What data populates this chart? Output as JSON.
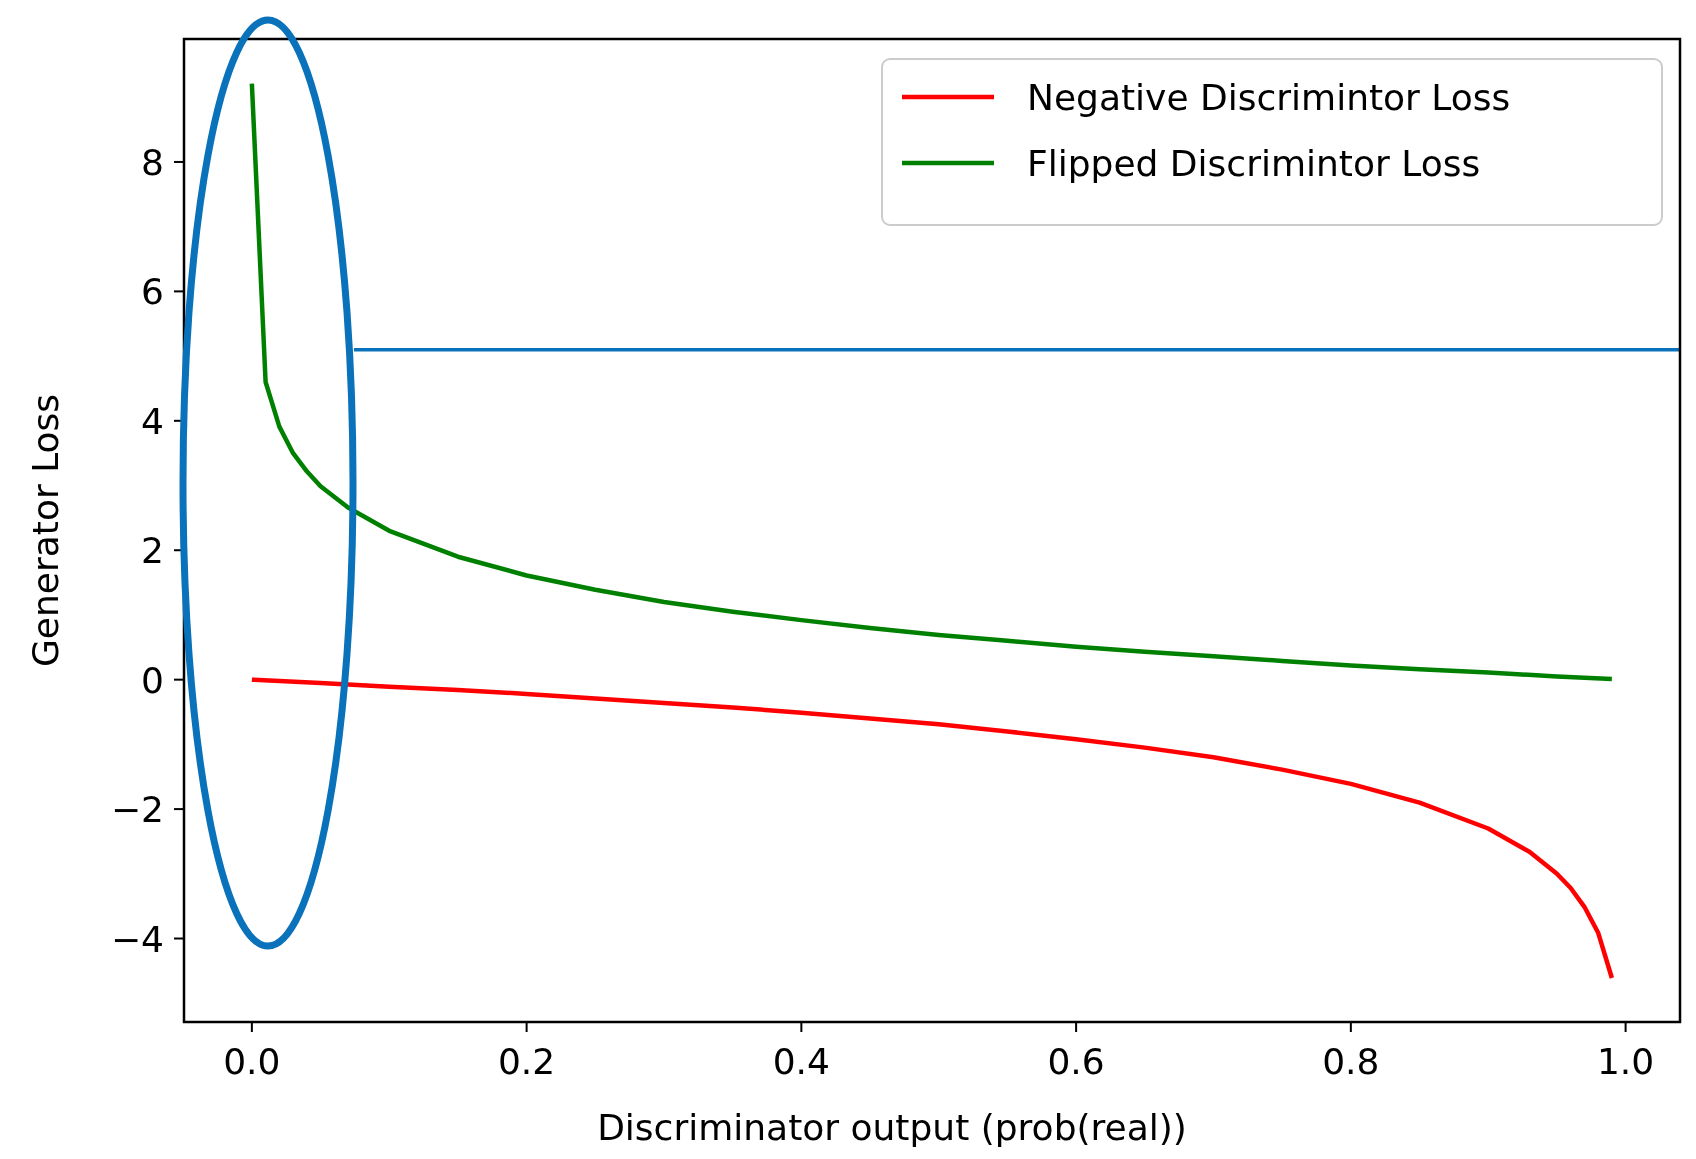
{
  "chart_data": {
    "type": "line",
    "xlabel": "Discriminator output (prob(real))",
    "ylabel": "Generator Loss",
    "xlim": [
      -0.0494,
      1.0396
    ],
    "xticks": [
      {
        "value": 0,
        "label": "0.0"
      },
      {
        "value": 0.2,
        "label": "0.2"
      },
      {
        "value": 0.4,
        "label": "0.4"
      },
      {
        "value": 0.6,
        "label": "0.6"
      },
      {
        "value": 0.8,
        "label": "0.8"
      },
      {
        "value": 1,
        "label": "1.0"
      }
    ],
    "ylim": [
      -5.29,
      9.9
    ],
    "yticks": [
      {
        "value": -4,
        "label": "−4"
      },
      {
        "value": -2,
        "label": "−2"
      },
      0,
      2,
      4,
      6,
      8
    ],
    "legend": "top right",
    "grid": false,
    "ref_lines": [
      {
        "axis": "y",
        "value": 5.1,
        "color": "#0a72ba"
      }
    ],
    "series": [
      {
        "name": "Negative Discrimintor Loss",
        "color": "#ff0000",
        "x": [
          0,
          0.05,
          0.1,
          0.15,
          0.2,
          0.25,
          0.3,
          0.35,
          0.4,
          0.45,
          0.5,
          0.55,
          0.6,
          0.65,
          0.7,
          0.75,
          0.8,
          0.85,
          0.9,
          0.93,
          0.95,
          0.96,
          0.97,
          0.98,
          0.99
        ],
        "values": [
          0,
          -0.05,
          -0.11,
          -0.16,
          -0.22,
          -0.29,
          -0.36,
          -0.43,
          -0.51,
          -0.6,
          -0.69,
          -0.8,
          -0.92,
          -1.05,
          -1.2,
          -1.39,
          -1.61,
          -1.9,
          -2.3,
          -2.66,
          -3,
          -3.22,
          -3.51,
          -3.91,
          -4.61
        ]
      },
      {
        "name": "Flipped Discrimintor Loss",
        "color": "#008000",
        "x": [
          0,
          0.01,
          0.02,
          0.03,
          0.04,
          0.05,
          0.07,
          0.1,
          0.15,
          0.2,
          0.25,
          0.3,
          0.35,
          0.4,
          0.45,
          0.5,
          0.55,
          0.6,
          0.65,
          0.7,
          0.75,
          0.8,
          0.85,
          0.9,
          0.95,
          0.99
        ],
        "values": [
          9.21,
          4.6,
          3.91,
          3.5,
          3.22,
          2.99,
          2.66,
          2.3,
          1.9,
          1.61,
          1.39,
          1.2,
          1.05,
          0.92,
          0.8,
          0.69,
          0.6,
          0.51,
          0.43,
          0.36,
          0.29,
          0.22,
          0.16,
          0.11,
          0.05,
          0.01
        ]
      }
    ]
  }
}
